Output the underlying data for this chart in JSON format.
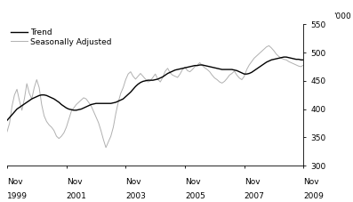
{
  "ylabel_top": "'000",
  "ylim": [
    300,
    550
  ],
  "yticks": [
    300,
    350,
    400,
    450,
    500,
    550
  ],
  "xlim": [
    0,
    120
  ],
  "xtick_positions": [
    0,
    24,
    48,
    72,
    96,
    120
  ],
  "xtick_labels_line1": [
    "Nov",
    "Nov",
    "Nov",
    "Nov",
    "Nov",
    "Nov"
  ],
  "xtick_labels_line2": [
    "1999",
    "2001",
    "2003",
    "2005",
    "2007",
    "2009"
  ],
  "legend_entries": [
    "Trend",
    "Seasonally Adjusted"
  ],
  "trend_color": "#000000",
  "seasonal_color": "#b0b0b0",
  "background_color": "#ffffff",
  "trend_lw": 1.0,
  "seasonal_lw": 0.7,
  "trend_data": [
    380,
    385,
    390,
    395,
    400,
    403,
    406,
    409,
    412,
    415,
    418,
    420,
    422,
    424,
    425,
    425,
    424,
    422,
    420,
    418,
    415,
    412,
    408,
    405,
    402,
    400,
    399,
    398,
    398,
    399,
    400,
    402,
    404,
    406,
    408,
    409,
    410,
    410,
    410,
    410,
    410,
    410,
    410,
    411,
    412,
    414,
    416,
    418,
    422,
    426,
    430,
    435,
    440,
    444,
    447,
    449,
    450,
    451,
    451,
    451,
    452,
    453,
    455,
    457,
    460,
    463,
    465,
    467,
    469,
    470,
    471,
    472,
    473,
    474,
    475,
    476,
    477,
    477,
    478,
    478,
    477,
    476,
    475,
    474,
    473,
    472,
    471,
    470,
    470,
    470,
    470,
    470,
    469,
    468,
    466,
    464,
    462,
    462,
    463,
    465,
    468,
    471,
    474,
    477,
    480,
    483,
    485,
    487,
    488,
    489,
    490,
    491,
    492,
    492,
    491,
    490,
    489,
    488,
    488,
    487,
    487
  ],
  "seasonal_data": [
    360,
    375,
    405,
    425,
    435,
    415,
    398,
    418,
    445,
    428,
    418,
    438,
    452,
    438,
    408,
    388,
    378,
    372,
    368,
    362,
    352,
    348,
    352,
    358,
    368,
    382,
    396,
    402,
    408,
    412,
    416,
    420,
    418,
    412,
    406,
    396,
    386,
    376,
    362,
    346,
    332,
    342,
    352,
    368,
    392,
    412,
    428,
    438,
    452,
    462,
    466,
    458,
    453,
    458,
    463,
    458,
    453,
    448,
    450,
    456,
    462,
    453,
    448,
    456,
    467,
    472,
    464,
    460,
    458,
    456,
    462,
    470,
    474,
    468,
    466,
    470,
    475,
    478,
    482,
    477,
    473,
    470,
    466,
    460,
    455,
    452,
    448,
    446,
    449,
    454,
    460,
    463,
    467,
    460,
    455,
    452,
    458,
    470,
    478,
    484,
    490,
    494,
    498,
    502,
    506,
    510,
    512,
    508,
    503,
    497,
    493,
    490,
    488,
    487,
    484,
    482,
    480,
    478,
    476,
    475,
    478
  ]
}
